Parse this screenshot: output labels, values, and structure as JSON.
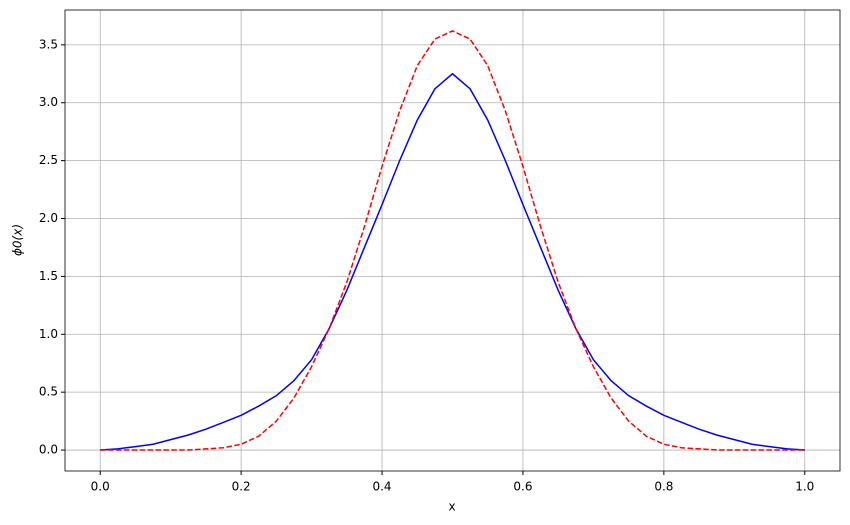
{
  "chart_data": {
    "type": "line",
    "xlabel": "x",
    "ylabel": "ϕ0(x)",
    "x": [
      0,
      0.025,
      0.05,
      0.075,
      0.1,
      0.125,
      0.15,
      0.175,
      0.2,
      0.225,
      0.25,
      0.275,
      0.3,
      0.325,
      0.35,
      0.375,
      0.4,
      0.425,
      0.45,
      0.475,
      0.5,
      0.525,
      0.55,
      0.575,
      0.6,
      0.625,
      0.65,
      0.675,
      0.7,
      0.725,
      0.75,
      0.775,
      0.8,
      0.825,
      0.85,
      0.875,
      0.9,
      0.925,
      0.95,
      0.975,
      1
    ],
    "series": [
      {
        "color": "#0000ff",
        "linestyle": "solid",
        "values": [
          0.0,
          0.01,
          0.03,
          0.05,
          0.09,
          0.13,
          0.18,
          0.24,
          0.3,
          0.38,
          0.47,
          0.6,
          0.78,
          1.05,
          1.38,
          1.75,
          2.12,
          2.5,
          2.85,
          3.12,
          3.25,
          3.12,
          2.85,
          2.5,
          2.12,
          1.75,
          1.38,
          1.05,
          0.78,
          0.6,
          0.47,
          0.38,
          0.3,
          0.24,
          0.18,
          0.13,
          0.09,
          0.05,
          0.03,
          0.01,
          0.0
        ]
      },
      {
        "color": "#ff0000",
        "linestyle": "dashed",
        "values": [
          0,
          0,
          0,
          0,
          0,
          0,
          0.01,
          0.02,
          0.05,
          0.12,
          0.25,
          0.45,
          0.72,
          1.05,
          1.45,
          1.93,
          2.45,
          2.93,
          3.32,
          3.55,
          3.62,
          3.55,
          3.32,
          2.93,
          2.45,
          1.93,
          1.45,
          1.05,
          0.72,
          0.45,
          0.25,
          0.12,
          0.05,
          0.02,
          0.01,
          0,
          0,
          0,
          0,
          0,
          0
        ]
      }
    ],
    "xlim": [
      -0.05,
      1.05
    ],
    "xticks": [
      {
        "value": 0,
        "label": "0.0"
      },
      0.2,
      0.4,
      0.6,
      0.8,
      {
        "value": 1,
        "label": "1.0"
      }
    ],
    "ylim": [
      -0.181,
      3.801
    ],
    "yticks": [
      {
        "value": 0,
        "label": "0.0"
      },
      0.5,
      {
        "value": 1,
        "label": "1.0"
      },
      1.5,
      {
        "value": 2,
        "label": "2.0"
      },
      2.5,
      {
        "value": 3,
        "label": "3.0"
      },
      3.5
    ],
    "grid": true
  }
}
